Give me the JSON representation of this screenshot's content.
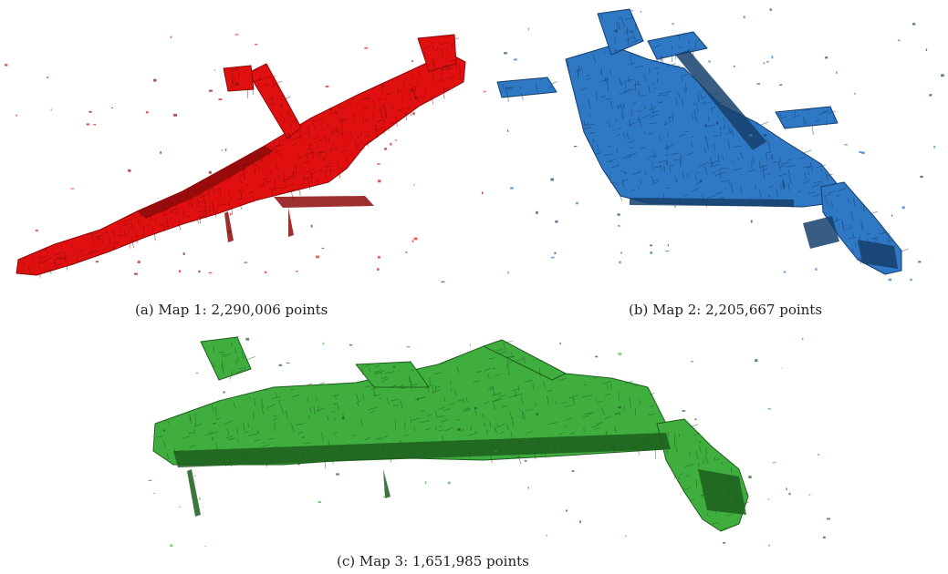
{
  "figure": {
    "panels": [
      {
        "id": "a",
        "caption": "(a) Map 1: 2,290,006 points",
        "color": "#e01010",
        "shade": "#8c0a0a"
      },
      {
        "id": "b",
        "caption": "(b) Map 2: 2,205,667 points",
        "color": "#2e78c4",
        "shade": "#163f6c"
      },
      {
        "id": "c",
        "caption": "(c) Map 3: 1,651,985 points",
        "color": "#3fae3f",
        "shade": "#1d5e1d"
      }
    ]
  }
}
